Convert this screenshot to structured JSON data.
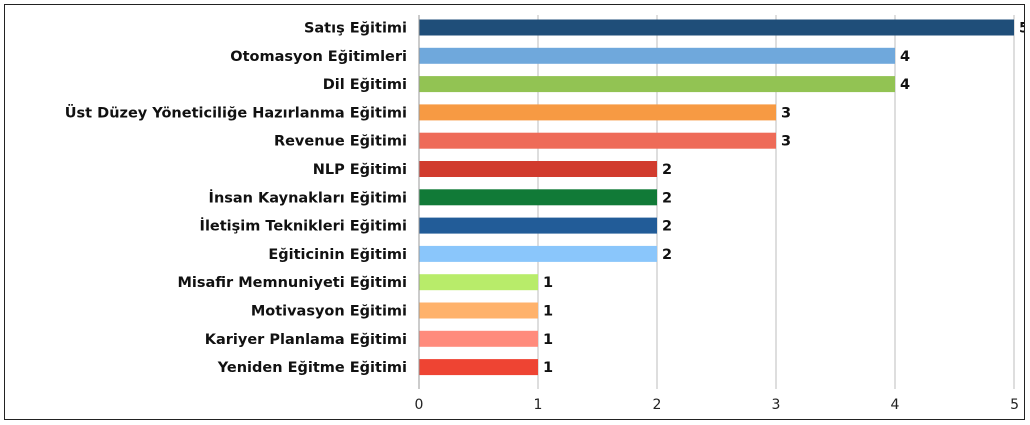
{
  "chart_data": {
    "type": "bar",
    "orientation": "horizontal",
    "title": "",
    "categories": [
      "Satış Eğitimi",
      "Otomasyon Eğitimleri",
      "Dil Eğitimi",
      "Üst Düzey Yöneticiliğe Hazırlanma Eğitimi",
      "Revenue Eğitimi",
      "NLP Eğitimi",
      "İnsan Kaynakları Eğitimi",
      "İletişim Teknikleri Eğitimi",
      "Eğiticinin Eğitimi",
      "Misafir Memnuniyeti Eğitimi",
      "Motivasyon Eğitimi",
      "Kariyer Planlama Eğitimi",
      "Yeniden Eğitme Eğitimi"
    ],
    "values": [
      5,
      4,
      4,
      3,
      3,
      2,
      2,
      2,
      2,
      1,
      1,
      1,
      1
    ],
    "colors": [
      "#1F4E79",
      "#6FA8DC",
      "#92C353",
      "#F79A43",
      "#EE6B58",
      "#D13B2E",
      "#117A37",
      "#225C98",
      "#8AC6FB",
      "#B8EC6A",
      "#FFB26B",
      "#FF8B7C",
      "#EE4433"
    ],
    "data_labels": [
      "5",
      "4",
      "4",
      "3",
      "3",
      "2",
      "2",
      "2",
      "2",
      "1",
      "1",
      "1",
      "1"
    ],
    "xlim": [
      0,
      5
    ],
    "x_ticks": [
      "0",
      "1",
      "2",
      "3",
      "4",
      "5"
    ],
    "xlabel": "",
    "ylabel": "",
    "grid": true,
    "legend": "none"
  }
}
